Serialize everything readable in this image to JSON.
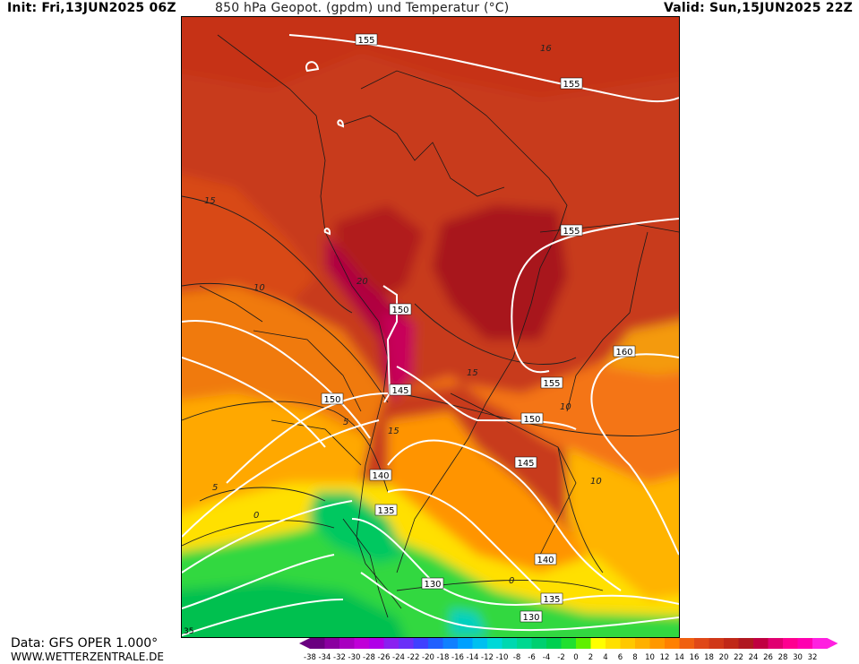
{
  "header": {
    "init": "Init: Fri,13JUN2025 06Z",
    "title": "850 hPa Geopot. (gpdm) und Temperatur (°C)",
    "valid": "Valid: Sun,15JUN2025 22Z"
  },
  "footer": {
    "data_source": "Data: GFS OPER 1.000°",
    "website": "WWW.WETTERZENTRALE.DE"
  },
  "colorbar": {
    "ticks": [
      "-38",
      "-34",
      "-32",
      "-30",
      "-28",
      "-26",
      "-24",
      "-22",
      "-20",
      "-18",
      "-16",
      "-14",
      "-12",
      "-10",
      "-8",
      "-6",
      "-4",
      "-2",
      "0",
      "2",
      "4",
      "6",
      "8",
      "10",
      "12",
      "14",
      "16",
      "18",
      "20",
      "22",
      "24",
      "26",
      "28",
      "30",
      "32"
    ],
    "colors": [
      "#6a0080",
      "#8a00a0",
      "#a800c0",
      "#c000d8",
      "#b000e8",
      "#8a20f0",
      "#6a30f8",
      "#4040ff",
      "#2060ff",
      "#1080ff",
      "#00a0ff",
      "#00c0f0",
      "#00d8d8",
      "#00d8b0",
      "#00d890",
      "#00d070",
      "#00d050",
      "#20e030",
      "#60f000",
      "#ffff00",
      "#ffe000",
      "#ffc800",
      "#ffb000",
      "#ff9800",
      "#ff8000",
      "#f06010",
      "#e04818",
      "#d03818",
      "#c02818",
      "#b01820",
      "#c00040",
      "#e00070",
      "#ff0090",
      "#ff00b0",
      "#ff20e0"
    ]
  },
  "map": {
    "region": "South America",
    "geopotential_labels": [
      "155",
      "155",
      "155",
      "160",
      "155",
      "150",
      "150",
      "145",
      "150",
      "140",
      "145",
      "135",
      "140",
      "130",
      "135",
      "130"
    ],
    "temperature_labels": [
      "15",
      "16",
      "15",
      "10",
      "20",
      "15",
      "10",
      "5",
      "15",
      "5",
      "0",
      "10",
      "0",
      "35"
    ]
  }
}
